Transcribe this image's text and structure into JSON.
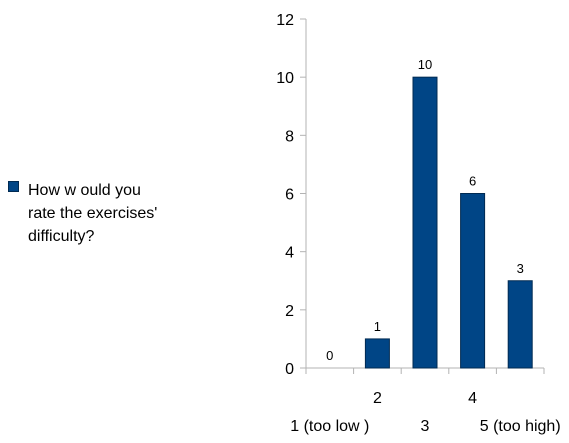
{
  "chart_data": {
    "type": "bar",
    "categories": [
      "1 (too low )",
      "2",
      "3",
      "4",
      "5 (too high)"
    ],
    "series": [
      {
        "name": "How w ould you\nrate the exercises'\ndifficulty?",
        "values": [
          0,
          1,
          10,
          6,
          3
        ]
      }
    ],
    "data_labels": [
      "0",
      "1",
      "10",
      "6",
      "3"
    ],
    "yticks": [
      "0",
      "2",
      "4",
      "6",
      "8",
      "10",
      "12"
    ],
    "ylim": [
      0,
      12
    ],
    "grid": false,
    "legend_position": "left",
    "colors": {
      "bar": "#004586",
      "bar_outline": "#002a52",
      "axis": "#b3b3b3"
    }
  }
}
